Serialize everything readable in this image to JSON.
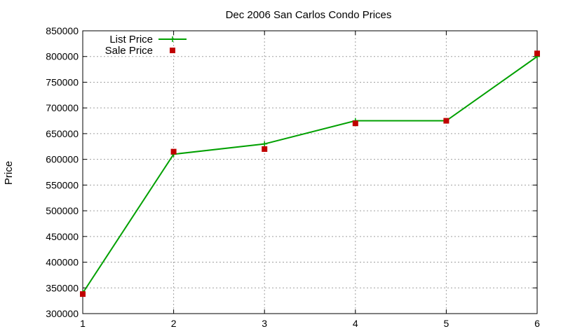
{
  "chart_data": {
    "type": "line",
    "title": "Dec 2006 San Carlos Condo Prices",
    "xlabel": "",
    "ylabel": "Price",
    "x": [
      1,
      2,
      3,
      4,
      5,
      6
    ],
    "xlim": [
      1,
      6
    ],
    "ylim": [
      300000,
      850000
    ],
    "xticks": [
      1,
      2,
      3,
      4,
      5,
      6
    ],
    "yticks": [
      300000,
      350000,
      400000,
      450000,
      500000,
      550000,
      600000,
      650000,
      700000,
      750000,
      800000,
      850000
    ],
    "grid": true,
    "legend_position": "top-left",
    "series": [
      {
        "name": "List Price",
        "style": "linespoints",
        "marker": "plus",
        "color": "#00a000",
        "values": [
          340000,
          610000,
          630000,
          675000,
          675000,
          800000
        ]
      },
      {
        "name": "Sale Price",
        "style": "points",
        "marker": "square",
        "color": "#c00000",
        "values": [
          338000,
          615000,
          620000,
          670000,
          675000,
          806000
        ]
      }
    ]
  }
}
